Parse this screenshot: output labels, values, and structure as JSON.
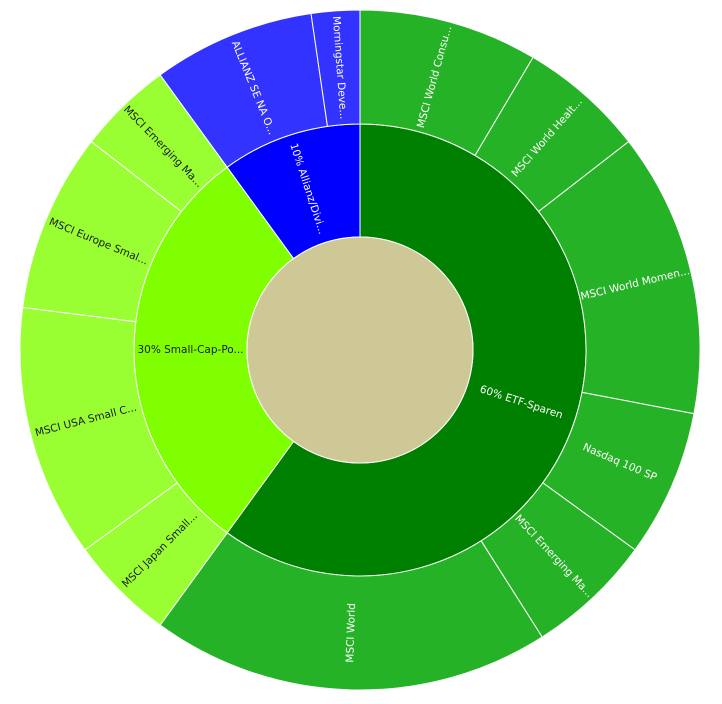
{
  "chart_data": {
    "type": "sunburst",
    "center_color": "#cdc896",
    "nodes": [
      {
        "name": "60% ETF-Sparen",
        "value": 60,
        "color": "#008000",
        "child_color": "#26b226",
        "text_color": "#ffffff",
        "children": [
          {
            "name": "MSCI World Consu...",
            "value": 8.5
          },
          {
            "name": "MSCI World Healt...",
            "value": 6
          },
          {
            "name": "MSCI World Momen...",
            "value": 13.5
          },
          {
            "name": "Nasdaq 100 SP",
            "value": 7
          },
          {
            "name": "MSCI Emerging Ma...",
            "value": 6
          },
          {
            "name": "MSCI World",
            "value": 19
          }
        ]
      },
      {
        "name": "30% Small-Cap-Po...",
        "value": 30,
        "color": "#80ff00",
        "child_color": "#99ff33",
        "text_color": "#1a1a1a",
        "children": [
          {
            "name": "MSCI Japan Small...",
            "value": 5
          },
          {
            "name": "MSCI USA Small C...",
            "value": 12
          },
          {
            "name": "MSCI Europe Smal...",
            "value": 8.5
          },
          {
            "name": "MSCI Emerging Ma...",
            "value": 4.5
          }
        ]
      },
      {
        "name": "10% Allianz/Divi...",
        "value": 10,
        "color": "#0000ff",
        "child_color": "#3333ff",
        "text_color": "#ffffff",
        "children": [
          {
            "name": "ALLIANZ SE NA O...",
            "value": 7.7
          },
          {
            "name": "Morningstar Deve...",
            "value": 2.3
          }
        ]
      }
    ]
  }
}
